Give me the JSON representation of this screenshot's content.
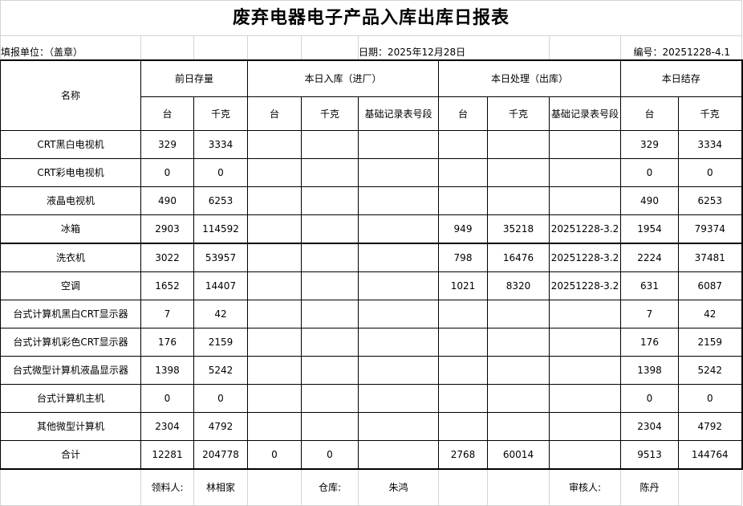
{
  "title": "废弃电器电子产品入库出库日报表",
  "info": {
    "unit": "填报单位：（盖章）",
    "date": "日期：2025年12月28日",
    "number": "编号：20251228-4.1"
  },
  "headers": {
    "name": "名称",
    "prev_stock": "前日存量",
    "inbound": "本日入库（进厂）",
    "outbound": "本日处理（出库）",
    "balance": "本日结存",
    "units": "台",
    "kg": "千克",
    "record": "基础记录表号段"
  },
  "rows": [
    {
      "name": "CRT黑白电视机",
      "prev_units": "329",
      "prev_kg": "3334",
      "in_units": "",
      "in_kg": "",
      "in_record": "",
      "out_units": "",
      "out_kg": "",
      "out_record": "",
      "bal_units": "329",
      "bal_kg": "3334"
    },
    {
      "name": "CRT彩电电视机",
      "prev_units": "0",
      "prev_kg": "0",
      "in_units": "",
      "in_kg": "",
      "in_record": "",
      "out_units": "",
      "out_kg": "",
      "out_record": "",
      "bal_units": "0",
      "bal_kg": "0"
    },
    {
      "name": "液晶电视机",
      "prev_units": "490",
      "prev_kg": "6253",
      "in_units": "",
      "in_kg": "",
      "in_record": "",
      "out_units": "",
      "out_kg": "",
      "out_record": "",
      "bal_units": "490",
      "bal_kg": "6253"
    },
    {
      "name": "冰箱",
      "prev_units": "2903",
      "prev_kg": "114592",
      "in_units": "",
      "in_kg": "",
      "in_record": "",
      "out_units": "949",
      "out_kg": "35218",
      "out_record": "20251228-3.2",
      "bal_units": "1954",
      "bal_kg": "79374"
    },
    {
      "name": "洗衣机",
      "prev_units": "3022",
      "prev_kg": "53957",
      "in_units": "",
      "in_kg": "",
      "in_record": "",
      "out_units": "798",
      "out_kg": "16476",
      "out_record": "20251228-3.2",
      "bal_units": "2224",
      "bal_kg": "37481"
    },
    {
      "name": "空调",
      "prev_units": "1652",
      "prev_kg": "14407",
      "in_units": "",
      "in_kg": "",
      "in_record": "",
      "out_units": "1021",
      "out_kg": "8320",
      "out_record": "20251228-3.2",
      "bal_units": "631",
      "bal_kg": "6087"
    },
    {
      "name": "台式计算机黑白CRT显示器",
      "prev_units": "7",
      "prev_kg": "42",
      "in_units": "",
      "in_kg": "",
      "in_record": "",
      "out_units": "",
      "out_kg": "",
      "out_record": "",
      "bal_units": "7",
      "bal_kg": "42"
    },
    {
      "name": "台式计算机彩色CRT显示器",
      "prev_units": "176",
      "prev_kg": "2159",
      "in_units": "",
      "in_kg": "",
      "in_record": "",
      "out_units": "",
      "out_kg": "",
      "out_record": "",
      "bal_units": "176",
      "bal_kg": "2159"
    },
    {
      "name": "台式微型计算机液晶显示器",
      "prev_units": "1398",
      "prev_kg": "5242",
      "in_units": "",
      "in_kg": "",
      "in_record": "",
      "out_units": "",
      "out_kg": "",
      "out_record": "",
      "bal_units": "1398",
      "bal_kg": "5242"
    },
    {
      "name": "台式计算机主机",
      "prev_units": "0",
      "prev_kg": "0",
      "in_units": "",
      "in_kg": "",
      "in_record": "",
      "out_units": "",
      "out_kg": "",
      "out_record": "",
      "bal_units": "0",
      "bal_kg": "0"
    },
    {
      "name": "其他微型计算机",
      "prev_units": "2304",
      "prev_kg": "4792",
      "in_units": "",
      "in_kg": "",
      "in_record": "",
      "out_units": "",
      "out_kg": "",
      "out_record": "",
      "bal_units": "2304",
      "bal_kg": "4792"
    }
  ],
  "total": {
    "name": "合计",
    "prev_units": "12281",
    "prev_kg": "204778",
    "in_units": "0",
    "in_kg": "0",
    "in_record": "",
    "out_units": "2768",
    "out_kg": "60014",
    "out_record": "",
    "bal_units": "9513",
    "bal_kg": "144764"
  },
  "signatures": {
    "receiver_label": "领料人:",
    "receiver": "林相家",
    "warehouse_label": "仓库:",
    "warehouse": "朱鸿",
    "reviewer_label": "审核人:",
    "reviewer": "陈丹"
  }
}
